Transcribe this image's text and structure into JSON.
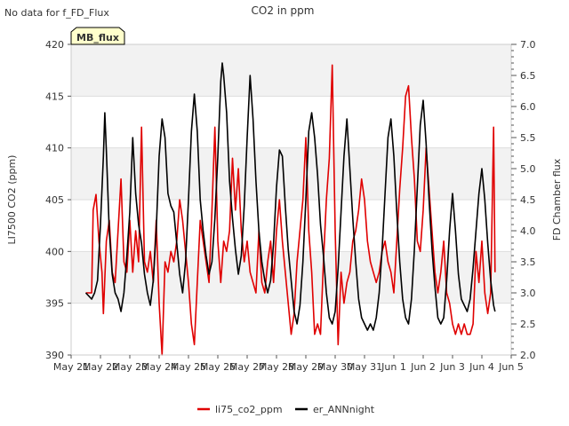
{
  "chart_data": {
    "type": "line",
    "title": "CO2 in ppm",
    "no_data_note": "No data for f_FD_Flux",
    "badge": "MB_flux",
    "ylabel_left": "LI7500 CO2 (ppm)",
    "ylabel_right": "FD Chamber flux",
    "x_ticks": [
      "May 21",
      "May 22",
      "May 23",
      "May 24",
      "May 25",
      "May 26",
      "May 27",
      "May 28",
      "May 29",
      "May 30",
      "May 31",
      "Jun 1",
      "Jun 2",
      "Jun 3",
      "Jun 4",
      "Jun 5"
    ],
    "left_ylim": [
      390,
      420
    ],
    "left_ticks": [
      "390",
      "395",
      "400",
      "405",
      "410",
      "415",
      "420"
    ],
    "right_ylim": [
      2.0,
      7.0
    ],
    "right_ticks": [
      "2.0",
      "2.5",
      "3.0",
      "3.5",
      "4.0",
      "4.5",
      "5.0",
      "5.5",
      "6.0",
      "6.5",
      "7.0"
    ],
    "x_range_days": [
      0,
      15
    ],
    "series": [
      {
        "name": "li75_co2_ppm",
        "axis": "left",
        "color": "#e00000",
        "points": [
          [
            0.5,
            396
          ],
          [
            0.7,
            396
          ],
          [
            0.75,
            404
          ],
          [
            0.85,
            405.5
          ],
          [
            0.95,
            401
          ],
          [
            1.05,
            398
          ],
          [
            1.1,
            394
          ],
          [
            1.2,
            401
          ],
          [
            1.3,
            403
          ],
          [
            1.4,
            398
          ],
          [
            1.5,
            397
          ],
          [
            1.6,
            402
          ],
          [
            1.7,
            407
          ],
          [
            1.8,
            399
          ],
          [
            1.9,
            398
          ],
          [
            2.0,
            403
          ],
          [
            2.1,
            398
          ],
          [
            2.2,
            402
          ],
          [
            2.3,
            399
          ],
          [
            2.4,
            412
          ],
          [
            2.5,
            399
          ],
          [
            2.6,
            398
          ],
          [
            2.7,
            400
          ],
          [
            2.8,
            397
          ],
          [
            2.9,
            403
          ],
          [
            3.0,
            395
          ],
          [
            3.1,
            390
          ],
          [
            3.2,
            399
          ],
          [
            3.3,
            398
          ],
          [
            3.4,
            400
          ],
          [
            3.5,
            399
          ],
          [
            3.6,
            401
          ],
          [
            3.7,
            405
          ],
          [
            3.8,
            403
          ],
          [
            3.9,
            400
          ],
          [
            4.0,
            397
          ],
          [
            4.1,
            393
          ],
          [
            4.2,
            391
          ],
          [
            4.3,
            397
          ],
          [
            4.4,
            403
          ],
          [
            4.5,
            401
          ],
          [
            4.6,
            399
          ],
          [
            4.7,
            397
          ],
          [
            4.8,
            404
          ],
          [
            4.9,
            412
          ],
          [
            5.0,
            401
          ],
          [
            5.1,
            397
          ],
          [
            5.2,
            401
          ],
          [
            5.3,
            400
          ],
          [
            5.4,
            402
          ],
          [
            5.5,
            409
          ],
          [
            5.6,
            404
          ],
          [
            5.7,
            408
          ],
          [
            5.8,
            402
          ],
          [
            5.9,
            399
          ],
          [
            6.0,
            401
          ],
          [
            6.1,
            398
          ],
          [
            6.2,
            397
          ],
          [
            6.3,
            396
          ],
          [
            6.4,
            402
          ],
          [
            6.5,
            397
          ],
          [
            6.6,
            396
          ],
          [
            6.7,
            399
          ],
          [
            6.8,
            401
          ],
          [
            6.9,
            397
          ],
          [
            7.0,
            402
          ],
          [
            7.1,
            405
          ],
          [
            7.2,
            401
          ],
          [
            7.3,
            398
          ],
          [
            7.4,
            395
          ],
          [
            7.5,
            392
          ],
          [
            7.6,
            394
          ],
          [
            7.7,
            399
          ],
          [
            7.8,
            402
          ],
          [
            7.9,
            405
          ],
          [
            8.0,
            411
          ],
          [
            8.1,
            402
          ],
          [
            8.2,
            398
          ],
          [
            8.3,
            392
          ],
          [
            8.4,
            393
          ],
          [
            8.5,
            392
          ],
          [
            8.6,
            399
          ],
          [
            8.7,
            405
          ],
          [
            8.8,
            409
          ],
          [
            8.9,
            418
          ],
          [
            9.0,
            402
          ],
          [
            9.1,
            391
          ],
          [
            9.2,
            398
          ],
          [
            9.3,
            395
          ],
          [
            9.4,
            397
          ],
          [
            9.5,
            398
          ],
          [
            9.6,
            401
          ],
          [
            9.7,
            402
          ],
          [
            9.8,
            404
          ],
          [
            9.9,
            407
          ],
          [
            10.0,
            405
          ],
          [
            10.1,
            401
          ],
          [
            10.2,
            399
          ],
          [
            10.3,
            398
          ],
          [
            10.4,
            397
          ],
          [
            10.5,
            398
          ],
          [
            10.6,
            400
          ],
          [
            10.7,
            401
          ],
          [
            10.8,
            399
          ],
          [
            10.9,
            398
          ],
          [
            11.0,
            396
          ],
          [
            11.1,
            401
          ],
          [
            11.2,
            406
          ],
          [
            11.3,
            410
          ],
          [
            11.4,
            415
          ],
          [
            11.5,
            416
          ],
          [
            11.6,
            411
          ],
          [
            11.7,
            407
          ],
          [
            11.8,
            401
          ],
          [
            11.9,
            400
          ],
          [
            12.0,
            404
          ],
          [
            12.1,
            410
          ],
          [
            12.2,
            406
          ],
          [
            12.3,
            402
          ],
          [
            12.4,
            398
          ],
          [
            12.5,
            396
          ],
          [
            12.6,
            398
          ],
          [
            12.7,
            401
          ],
          [
            12.8,
            396
          ],
          [
            12.9,
            395
          ],
          [
            13.0,
            393
          ],
          [
            13.1,
            392
          ],
          [
            13.2,
            393
          ],
          [
            13.3,
            392
          ],
          [
            13.4,
            393
          ],
          [
            13.5,
            392
          ],
          [
            13.6,
            392
          ],
          [
            13.7,
            393
          ],
          [
            13.8,
            400
          ],
          [
            13.9,
            397
          ],
          [
            14.0,
            401
          ],
          [
            14.1,
            396
          ],
          [
            14.2,
            394
          ],
          [
            14.3,
            396
          ],
          [
            14.4,
            412
          ],
          [
            14.45,
            398
          ]
        ]
      },
      {
        "name": "er_ANNnight",
        "axis": "right",
        "color": "#000000",
        "points": [
          [
            0.5,
            3.0
          ],
          [
            0.7,
            2.9
          ],
          [
            0.8,
            3.0
          ],
          [
            0.9,
            3.2
          ],
          [
            1.0,
            4.1
          ],
          [
            1.1,
            5.2
          ],
          [
            1.15,
            5.9
          ],
          [
            1.2,
            5.3
          ],
          [
            1.3,
            4.0
          ],
          [
            1.4,
            3.3
          ],
          [
            1.5,
            3.0
          ],
          [
            1.6,
            2.9
          ],
          [
            1.7,
            2.7
          ],
          [
            1.8,
            3.0
          ],
          [
            1.9,
            3.6
          ],
          [
            2.0,
            4.3
          ],
          [
            2.1,
            5.5
          ],
          [
            2.2,
            4.6
          ],
          [
            2.3,
            4.1
          ],
          [
            2.4,
            3.8
          ],
          [
            2.5,
            3.3
          ],
          [
            2.6,
            3.0
          ],
          [
            2.7,
            2.8
          ],
          [
            2.8,
            3.2
          ],
          [
            2.9,
            4.0
          ],
          [
            3.0,
            5.2
          ],
          [
            3.1,
            5.8
          ],
          [
            3.2,
            5.5
          ],
          [
            3.3,
            4.6
          ],
          [
            3.4,
            4.4
          ],
          [
            3.5,
            4.3
          ],
          [
            3.6,
            3.8
          ],
          [
            3.7,
            3.3
          ],
          [
            3.8,
            3.0
          ],
          [
            3.9,
            3.5
          ],
          [
            4.0,
            4.5
          ],
          [
            4.1,
            5.6
          ],
          [
            4.2,
            6.2
          ],
          [
            4.3,
            5.6
          ],
          [
            4.4,
            4.5
          ],
          [
            4.5,
            4.0
          ],
          [
            4.6,
            3.6
          ],
          [
            4.7,
            3.3
          ],
          [
            4.8,
            3.5
          ],
          [
            4.9,
            4.2
          ],
          [
            5.0,
            5.2
          ],
          [
            5.1,
            6.4
          ],
          [
            5.15,
            6.7
          ],
          [
            5.2,
            6.5
          ],
          [
            5.3,
            5.9
          ],
          [
            5.4,
            4.8
          ],
          [
            5.5,
            4.2
          ],
          [
            5.6,
            3.7
          ],
          [
            5.7,
            3.3
          ],
          [
            5.8,
            3.6
          ],
          [
            5.9,
            4.4
          ],
          [
            6.0,
            5.5
          ],
          [
            6.1,
            6.5
          ],
          [
            6.2,
            5.8
          ],
          [
            6.3,
            4.8
          ],
          [
            6.4,
            4.0
          ],
          [
            6.5,
            3.5
          ],
          [
            6.6,
            3.2
          ],
          [
            6.7,
            3.0
          ],
          [
            6.8,
            3.2
          ],
          [
            6.9,
            3.8
          ],
          [
            7.0,
            4.7
          ],
          [
            7.1,
            5.3
          ],
          [
            7.2,
            5.2
          ],
          [
            7.3,
            4.4
          ],
          [
            7.4,
            3.7
          ],
          [
            7.5,
            3.2
          ],
          [
            7.6,
            2.7
          ],
          [
            7.7,
            2.5
          ],
          [
            7.8,
            2.8
          ],
          [
            7.9,
            3.5
          ],
          [
            8.0,
            4.5
          ],
          [
            8.1,
            5.6
          ],
          [
            8.2,
            5.9
          ],
          [
            8.3,
            5.5
          ],
          [
            8.4,
            4.9
          ],
          [
            8.5,
            4.1
          ],
          [
            8.6,
            3.6
          ],
          [
            8.7,
            3.0
          ],
          [
            8.8,
            2.6
          ],
          [
            8.9,
            2.5
          ],
          [
            9.0,
            2.7
          ],
          [
            9.1,
            3.4
          ],
          [
            9.2,
            4.3
          ],
          [
            9.3,
            5.2
          ],
          [
            9.4,
            5.8
          ],
          [
            9.5,
            5.0
          ],
          [
            9.6,
            4.2
          ],
          [
            9.7,
            3.5
          ],
          [
            9.8,
            2.9
          ],
          [
            9.9,
            2.6
          ],
          [
            10.0,
            2.5
          ],
          [
            10.1,
            2.4
          ],
          [
            10.2,
            2.5
          ],
          [
            10.3,
            2.4
          ],
          [
            10.4,
            2.6
          ],
          [
            10.5,
            3.0
          ],
          [
            10.6,
            3.7
          ],
          [
            10.7,
            4.6
          ],
          [
            10.8,
            5.5
          ],
          [
            10.9,
            5.8
          ],
          [
            11.0,
            5.2
          ],
          [
            11.1,
            4.3
          ],
          [
            11.2,
            3.5
          ],
          [
            11.3,
            2.9
          ],
          [
            11.4,
            2.6
          ],
          [
            11.5,
            2.5
          ],
          [
            11.6,
            2.9
          ],
          [
            11.7,
            3.7
          ],
          [
            11.8,
            4.7
          ],
          [
            11.9,
            5.7
          ],
          [
            12.0,
            6.1
          ],
          [
            12.1,
            5.4
          ],
          [
            12.2,
            4.5
          ],
          [
            12.3,
            3.7
          ],
          [
            12.4,
            3.1
          ],
          [
            12.5,
            2.6
          ],
          [
            12.6,
            2.5
          ],
          [
            12.7,
            2.6
          ],
          [
            12.8,
            3.2
          ],
          [
            12.9,
            4.0
          ],
          [
            13.0,
            4.6
          ],
          [
            13.1,
            4.0
          ],
          [
            13.2,
            3.3
          ],
          [
            13.3,
            2.9
          ],
          [
            13.4,
            2.8
          ],
          [
            13.5,
            2.7
          ],
          [
            13.6,
            2.9
          ],
          [
            13.7,
            3.4
          ],
          [
            13.8,
            4.0
          ],
          [
            13.9,
            4.6
          ],
          [
            14.0,
            5.0
          ],
          [
            14.1,
            4.5
          ],
          [
            14.2,
            3.8
          ],
          [
            14.3,
            3.2
          ],
          [
            14.4,
            2.8
          ],
          [
            14.45,
            2.7
          ]
        ]
      }
    ]
  }
}
